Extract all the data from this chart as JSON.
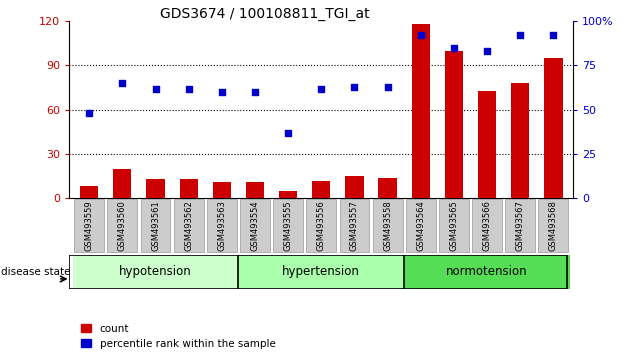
{
  "title": "GDS3674 / 100108811_TGI_at",
  "samples": [
    "GSM493559",
    "GSM493560",
    "GSM493561",
    "GSM493562",
    "GSM493563",
    "GSM493554",
    "GSM493555",
    "GSM493556",
    "GSM493557",
    "GSM493558",
    "GSM493564",
    "GSM493565",
    "GSM493566",
    "GSM493567",
    "GSM493568"
  ],
  "count_values": [
    8,
    20,
    13,
    13,
    11,
    11,
    5,
    12,
    15,
    14,
    118,
    100,
    73,
    78,
    95
  ],
  "percentile_values": [
    48,
    65,
    62,
    62,
    60,
    60,
    37,
    62,
    63,
    63,
    92,
    85,
    83,
    92,
    92
  ],
  "left_ylim": [
    0,
    120
  ],
  "right_ylim": [
    0,
    100
  ],
  "left_yticks": [
    0,
    30,
    60,
    90,
    120
  ],
  "right_yticks": [
    0,
    25,
    50,
    75,
    100
  ],
  "right_yticklabels": [
    "0",
    "25",
    "50",
    "75",
    "100%"
  ],
  "bar_color": "#cc0000",
  "dot_color": "#0000cc",
  "groups": [
    {
      "label": "hypotension",
      "indices": [
        0,
        1,
        2,
        3,
        4
      ],
      "color": "#ccffcc"
    },
    {
      "label": "hypertension",
      "indices": [
        5,
        6,
        7,
        8,
        9
      ],
      "color": "#aaffaa"
    },
    {
      "label": "normotension",
      "indices": [
        10,
        11,
        12,
        13,
        14
      ],
      "color": "#55dd55"
    }
  ],
  "group_label": "disease state",
  "legend_count_label": "count",
  "legend_percentile_label": "percentile rank within the sample",
  "background_color": "#ffffff",
  "tick_label_bg": "#cccccc"
}
